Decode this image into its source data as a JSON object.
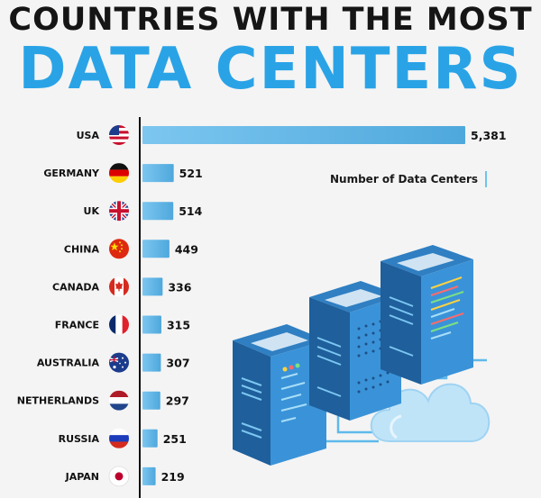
{
  "title": {
    "line1": "COUNTRIES WITH THE MOST",
    "line2": "DATA CENTERS"
  },
  "legend": {
    "label": "Number of Data Centers"
  },
  "colors": {
    "bar": "#7cc6f0",
    "bar_dark": "#4ea8dc",
    "title_accent": "#2aa3e6"
  },
  "chart_data": {
    "type": "bar",
    "orientation": "horizontal",
    "title": "COUNTRIES WITH THE MOST DATA CENTERS",
    "categories": [
      "USA",
      "GERMANY",
      "UK",
      "CHINA",
      "CANADA",
      "FRANCE",
      "AUSTRALIA",
      "NETHERLANDS",
      "RUSSIA",
      "JAPAN"
    ],
    "value_labels": [
      "5,381",
      "521",
      "514",
      "449",
      "336",
      "315",
      "307",
      "297",
      "251",
      "219"
    ],
    "values": [
      5381,
      521,
      514,
      449,
      336,
      315,
      307,
      297,
      251,
      219
    ],
    "series": [
      {
        "name": "Number of Data Centers",
        "values": [
          5381,
          521,
          514,
          449,
          336,
          315,
          307,
          297,
          251,
          219
        ]
      }
    ],
    "flags": [
      "usa-flag-icon",
      "germany-flag-icon",
      "uk-flag-icon",
      "china-flag-icon",
      "canada-flag-icon",
      "france-flag-icon",
      "australia-flag-icon",
      "netherlands-flag-icon",
      "russia-flag-icon",
      "japan-flag-icon"
    ],
    "xlim": [
      0,
      5381
    ],
    "legend_position": "right",
    "grid": false
  }
}
